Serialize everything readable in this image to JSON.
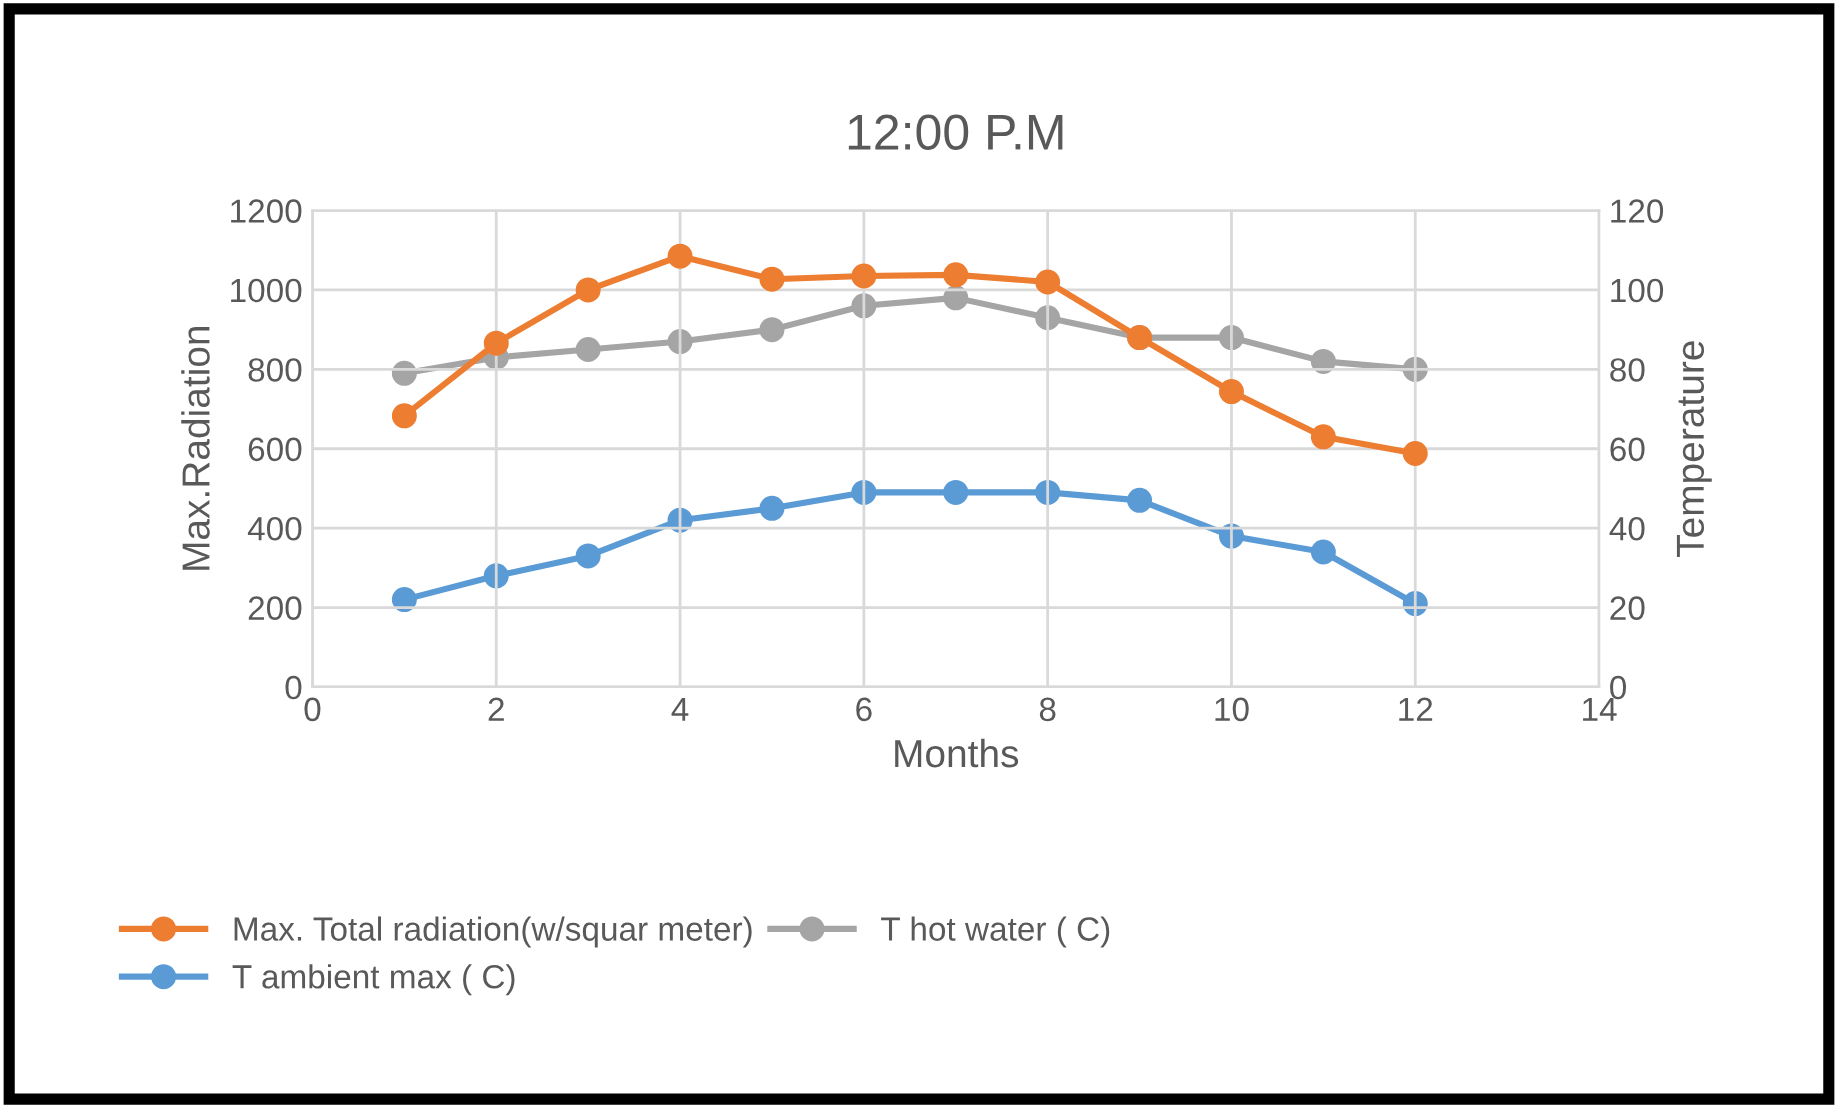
{
  "chart_data": {
    "type": "line",
    "title": "12:00 P.M",
    "xlabel": "Months",
    "ylabel": "Max.Radiation",
    "y2label": "Temperature",
    "x": [
      1,
      2,
      3,
      4,
      5,
      6,
      7,
      8,
      9,
      10,
      11,
      12
    ],
    "series": [
      {
        "name": "Max. Total radiation(w/squar meter)",
        "color": "#ed7d31",
        "values": [
          683,
          866,
          1000,
          1085,
          1027,
          1035,
          1038,
          1020,
          880,
          744,
          630,
          588
        ]
      },
      {
        "name": "T ambient max ( C)",
        "color": "#5b9bd5",
        "axis": "y2",
        "values": [
          22,
          28,
          33,
          42,
          45,
          49,
          49,
          49,
          47,
          38,
          34,
          21
        ]
      },
      {
        "name": "T hot water ( C)",
        "color": "#a5a5a5",
        "axis": "y2",
        "values": [
          79,
          83,
          85,
          87,
          90,
          96,
          98,
          93,
          88,
          88,
          82,
          80
        ]
      }
    ],
    "xlim": [
      0,
      14
    ],
    "xticks": [
      0,
      2,
      4,
      6,
      8,
      10,
      12,
      14
    ],
    "ylim": [
      0,
      1200
    ],
    "yticks": [
      0,
      200,
      400,
      600,
      800,
      1000,
      1200
    ],
    "y2lim": [
      0,
      120
    ],
    "y2ticks": [
      0,
      20,
      40,
      60,
      80,
      100,
      120
    ],
    "grid": true,
    "legend": "bottom",
    "marker": "circle",
    "line_style": "solid"
  }
}
